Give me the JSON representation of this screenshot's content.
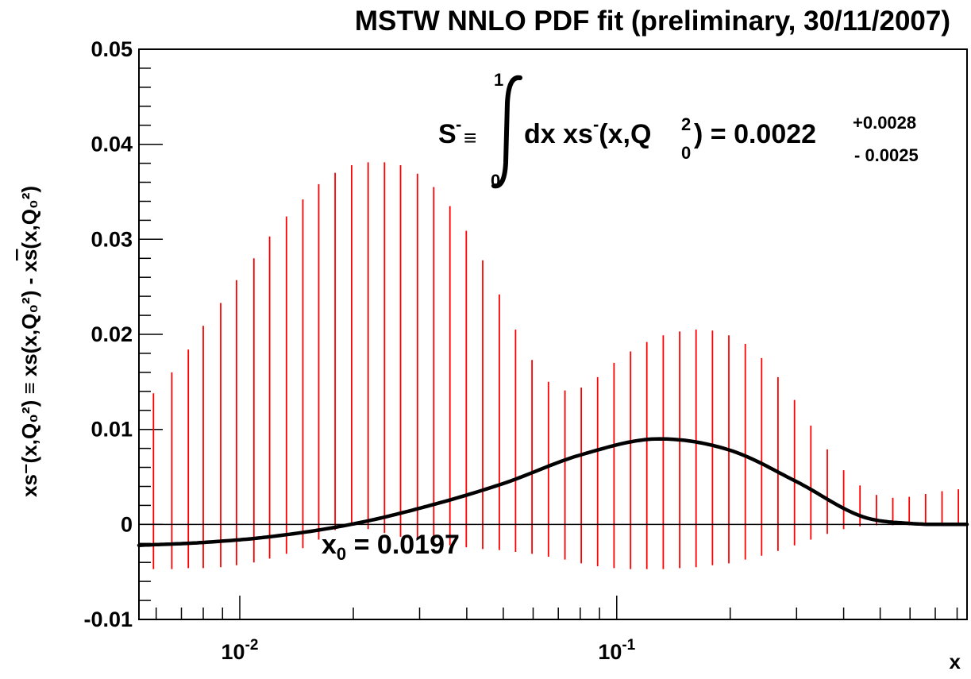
{
  "chart_data": {
    "type": "line",
    "title": "MSTW NNLO PDF fit (preliminary, 30/11/2007)",
    "xlabel": "x",
    "ylabel": {
      "lhs": "xs⁻(x,Q₀²) ≡ xs(x,Q₀²) - x",
      "sbar": "s",
      "rhs": "(x,Q₀²)"
    },
    "xscale": "log",
    "xlim": [
      0.0054,
      0.85
    ],
    "ylim": [
      -0.01,
      0.05
    ],
    "grid": false,
    "yticks": [
      {
        "value": -0.01,
        "label": "-0.01"
      },
      {
        "value": 0,
        "label": "0"
      },
      {
        "value": 0.01,
        "label": "0.01"
      },
      {
        "value": 0.02,
        "label": "0.02"
      },
      {
        "value": 0.03,
        "label": "0.03"
      },
      {
        "value": 0.04,
        "label": "0.04"
      },
      {
        "value": 0.05,
        "label": "0.05"
      }
    ],
    "xticks": [
      {
        "value": 0.01,
        "base": "10",
        "exp": "-2"
      },
      {
        "value": 0.1,
        "base": "10",
        "exp": "-1"
      }
    ],
    "zero_line": true,
    "central_curve": {
      "color": "#000000",
      "x": [
        0.0054,
        0.008,
        0.012,
        0.0197,
        0.03,
        0.05,
        0.08,
        0.13,
        0.2,
        0.3,
        0.45,
        0.6,
        0.85
      ],
      "y": [
        -0.0022,
        -0.0019,
        -0.0013,
        0.0,
        0.0017,
        0.0043,
        0.0073,
        0.009,
        0.0078,
        0.0045,
        0.0008,
        0.0001,
        0.0
      ]
    },
    "error_band": {
      "color": "#ff0000",
      "x": [
        0.0054,
        0.0059,
        0.0066,
        0.0073,
        0.008,
        0.0089,
        0.0098,
        0.0109,
        0.012,
        0.0133,
        0.0147,
        0.0162,
        0.0179,
        0.0198,
        0.0219,
        0.0242,
        0.0267,
        0.0296,
        0.0327,
        0.0361,
        0.0399,
        0.0441,
        0.0488,
        0.0539,
        0.0596,
        0.0659,
        0.0729,
        0.0805,
        0.089,
        0.0984,
        0.1088,
        0.1202,
        0.1329,
        0.1469,
        0.1624,
        0.1795,
        0.1984,
        0.2193,
        0.2424,
        0.2679,
        0.2962,
        0.3274,
        0.3619,
        0.4,
        0.4421,
        0.4887,
        0.5402,
        0.5971,
        0.66,
        0.7295,
        0.8063
      ],
      "upper": [
        0.0117,
        0.0138,
        0.016,
        0.0184,
        0.0209,
        0.0233,
        0.0257,
        0.028,
        0.0303,
        0.0324,
        0.0342,
        0.0358,
        0.037,
        0.0378,
        0.0381,
        0.0381,
        0.0378,
        0.0369,
        0.0355,
        0.0335,
        0.0309,
        0.0278,
        0.0242,
        0.0205,
        0.0173,
        0.015,
        0.0141,
        0.0144,
        0.0155,
        0.017,
        0.0182,
        0.0192,
        0.0199,
        0.0203,
        0.0205,
        0.0204,
        0.0199,
        0.019,
        0.0175,
        0.0155,
        0.0131,
        0.0104,
        0.0079,
        0.0057,
        0.0041,
        0.0031,
        0.0028,
        0.0029,
        0.0032,
        0.0035,
        0.0037
      ],
      "lower": [
        -0.0047,
        -0.0047,
        -0.0047,
        -0.0046,
        -0.0046,
        -0.0045,
        -0.0043,
        -0.004,
        -0.0036,
        -0.0031,
        -0.0025,
        -0.0016,
        -0.0006,
        -0.0001,
        -0.0005,
        -0.0009,
        -0.0013,
        -0.0016,
        -0.0019,
        -0.0022,
        -0.0024,
        -0.0026,
        -0.0027,
        -0.0029,
        -0.0031,
        -0.0034,
        -0.0037,
        -0.0041,
        -0.0044,
        -0.0046,
        -0.0047,
        -0.0047,
        -0.0047,
        -0.0046,
        -0.0045,
        -0.0043,
        -0.0041,
        -0.0037,
        -0.0033,
        -0.0028,
        -0.0022,
        -0.0016,
        -0.001,
        -0.0005,
        -0.0002,
        -0.0001,
        -0.0001,
        -0.0001,
        -0.0001,
        0.0,
        0.0
      ]
    },
    "annotations": {
      "x0": {
        "main": "x",
        "sub": "0",
        "tail": " = 0.0197",
        "at_x": 0.0197
      },
      "integral": {
        "S": "S",
        "minus": "-",
        "equiv": "≡",
        "upper_limit": "1",
        "lower_limit": "0",
        "integrand_a": "dx xs",
        "integrand_b": "(x,Q",
        "sub0": "0",
        "sup2": "2",
        "result": ") = 0.0022",
        "err_plus": "+0.0028",
        "err_minus": "- 0.0025"
      }
    }
  }
}
